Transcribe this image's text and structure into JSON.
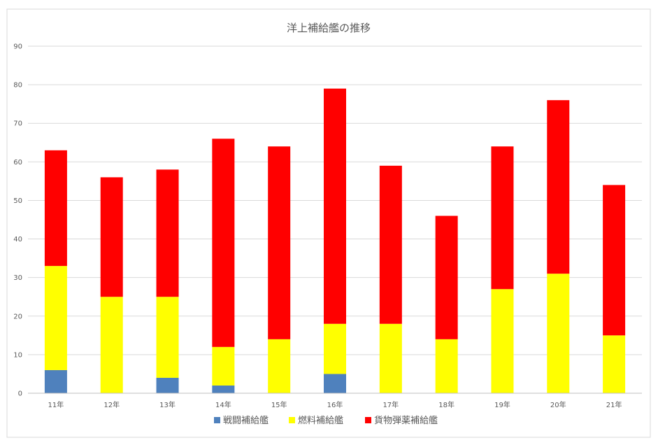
{
  "chart_data": {
    "type": "bar",
    "stacked": true,
    "title": "洋上補給艦の推移",
    "xlabel": "",
    "ylabel": "",
    "categories": [
      "11年",
      "12年",
      "13年",
      "14年",
      "15年",
      "16年",
      "17年",
      "18年",
      "19年",
      "20年",
      "21年"
    ],
    "series": [
      {
        "name": "戦闘補給艦",
        "color": "#4f81bd",
        "values": [
          6,
          0,
          4,
          2,
          0,
          5,
          0,
          0,
          0,
          0,
          0
        ]
      },
      {
        "name": "燃料補給艦",
        "color": "#ffff00",
        "values": [
          27,
          25,
          21,
          10,
          14,
          13,
          18,
          14,
          27,
          31,
          15
        ]
      },
      {
        "name": "貨物弾薬補給艦",
        "color": "#ff0000",
        "values": [
          30,
          31,
          33,
          54,
          50,
          61,
          41,
          32,
          37,
          45,
          39
        ]
      }
    ],
    "ylim": [
      0,
      90
    ],
    "yticks": [
      0,
      10,
      20,
      30,
      40,
      50,
      60,
      70,
      80,
      90
    ],
    "grid": true,
    "legend_position": "bottom"
  }
}
